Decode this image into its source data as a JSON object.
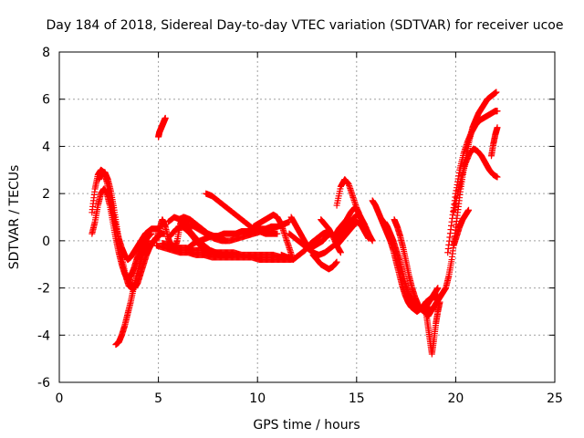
{
  "chart_data": {
    "type": "scatter",
    "title": "Day 184 of 2018, Sidereal Day-to-day VTEC variation (SDTVAR) for receiver ucoe",
    "xlabel": "GPS time / hours",
    "ylabel": "SDTVAR / TECUs",
    "xlim": [
      0,
      25
    ],
    "ylim": [
      -6,
      8
    ],
    "xticks": [
      0,
      5,
      10,
      15,
      20,
      25
    ],
    "yticks": [
      -6,
      -4,
      -2,
      0,
      2,
      4,
      6,
      8
    ],
    "grid": true,
    "marker": "plus",
    "color": "#ff0000",
    "series": [
      {
        "x": [
          1.65,
          1.8,
          1.95,
          2.1,
          2.25,
          2.4,
          2.55,
          2.7,
          2.85,
          3.0,
          3.15,
          3.3,
          3.45,
          3.6,
          3.75,
          3.9,
          4.05,
          4.2,
          4.35,
          4.5,
          4.65,
          4.8,
          4.95,
          5.1
        ],
        "y": [
          1.2,
          2.2,
          2.8,
          3.0,
          2.9,
          2.5,
          1.9,
          1.2,
          0.6,
          0.1,
          -0.3,
          -0.6,
          -0.8,
          -0.7,
          -0.5,
          -0.3,
          -0.1,
          0.1,
          0.3,
          0.4,
          0.5,
          0.5,
          0.5,
          0.5
        ]
      },
      {
        "x": [
          1.65,
          1.8,
          1.95,
          2.1,
          2.25,
          2.4,
          2.55,
          2.7,
          2.85,
          3.0,
          3.15,
          3.3,
          3.45,
          3.6,
          3.75,
          3.9,
          4.05,
          4.2,
          4.35,
          4.5,
          4.65
        ],
        "y": [
          0.3,
          0.8,
          1.5,
          2.0,
          2.2,
          2.0,
          1.5,
          0.8,
          0.1,
          -0.5,
          -1.0,
          -1.4,
          -1.6,
          -1.5,
          -1.2,
          -0.8,
          -0.5,
          -0.2,
          0.0,
          0.2,
          0.3
        ]
      },
      {
        "x": [
          2.0,
          2.15,
          2.3,
          2.45,
          2.6,
          2.75,
          2.9,
          3.05,
          3.2,
          3.35,
          3.5,
          3.65
        ],
        "y": [
          2.6,
          2.9,
          2.9,
          2.6,
          2.1,
          1.4,
          0.6,
          -0.2,
          -0.9,
          -1.5,
          -1.9,
          -2.0
        ]
      },
      {
        "x": [
          2.85,
          3.0,
          3.15,
          3.3,
          3.45,
          3.6,
          3.75,
          3.9,
          4.05,
          4.2,
          4.35,
          4.5
        ],
        "y": [
          -4.4,
          -4.3,
          -4.0,
          -3.6,
          -3.1,
          -2.6,
          -2.0,
          -1.5,
          -1.0,
          -0.6,
          -0.3,
          0.0
        ]
      },
      {
        "x": [
          3.5,
          3.65,
          3.8,
          3.95,
          4.1,
          4.25,
          4.4,
          4.55,
          4.7,
          4.85,
          5.0,
          5.15,
          5.3
        ],
        "y": [
          -1.5,
          -1.9,
          -2.0,
          -1.8,
          -1.4,
          -1.0,
          -0.6,
          -0.3,
          -0.1,
          0.1,
          0.2,
          0.3,
          0.3
        ]
      },
      {
        "x": [
          5.0,
          5.05,
          5.1,
          5.15,
          5.2,
          5.25,
          5.3,
          5.35
        ],
        "y": [
          4.4,
          4.6,
          4.7,
          4.8,
          4.9,
          5.0,
          5.1,
          5.2
        ]
      },
      {
        "x": [
          4.9,
          5.05,
          5.2,
          5.35,
          5.5,
          5.65,
          5.8,
          5.95,
          6.1,
          6.25,
          6.4,
          6.55
        ],
        "y": [
          0.0,
          0.5,
          0.9,
          0.6,
          0.1,
          -0.2,
          -0.4,
          0.0,
          0.7,
          1.0,
          0.8,
          0.5
        ]
      },
      {
        "x": [
          4.9,
          5.3,
          5.7,
          6.1,
          6.5,
          6.9,
          7.3,
          7.7,
          8.1,
          8.5,
          8.9,
          9.3,
          9.7,
          10.1,
          10.5,
          10.9,
          11.3,
          11.7
        ],
        "y": [
          -0.2,
          -0.3,
          -0.4,
          -0.5,
          -0.5,
          -0.6,
          -0.6,
          -0.7,
          -0.7,
          -0.7,
          -0.7,
          -0.7,
          -0.7,
          -0.8,
          -0.8,
          -0.8,
          -0.8,
          -0.8
        ]
      },
      {
        "x": [
          5.2,
          5.6,
          6.0,
          6.4,
          6.8,
          7.2,
          7.6,
          8.0,
          8.4,
          8.8,
          9.2,
          9.6,
          10.0,
          10.4,
          10.8,
          11.2,
          11.6
        ],
        "y": [
          -0.1,
          -0.2,
          -0.3,
          -0.3,
          -0.4,
          -0.4,
          -0.5,
          -0.5,
          -0.5,
          -0.5,
          -0.6,
          -0.6,
          -0.6,
          -0.6,
          -0.6,
          -0.7,
          -0.7
        ]
      },
      {
        "x": [
          5.5,
          5.8,
          6.1,
          6.4,
          6.7,
          7.0,
          7.3,
          7.6,
          7.9,
          8.2,
          8.5,
          8.8
        ],
        "y": [
          0.8,
          1.0,
          0.9,
          0.6,
          0.3,
          0.0,
          -0.2,
          -0.4,
          -0.5,
          -0.6,
          -0.6,
          -0.6
        ]
      },
      {
        "x": [
          5.6,
          5.9,
          6.2,
          6.5,
          6.8,
          7.1,
          7.4,
          7.7,
          8.0,
          8.3
        ],
        "y": [
          0.2,
          0.5,
          0.6,
          0.4,
          0.1,
          -0.2,
          -0.4,
          -0.5,
          -0.6,
          -0.6
        ]
      },
      {
        "x": [
          6.5,
          6.8,
          7.1,
          7.4,
          7.7,
          8.0,
          8.3,
          8.6,
          8.9,
          9.2,
          9.5,
          9.8,
          10.1,
          10.4,
          10.7,
          11.0,
          11.3,
          11.6
        ],
        "y": [
          -0.3,
          -0.1,
          0.0,
          0.1,
          0.2,
          0.2,
          0.3,
          0.3,
          0.3,
          0.4,
          0.4,
          0.5,
          0.5,
          0.5,
          0.6,
          0.6,
          0.7,
          0.8
        ]
      },
      {
        "x": [
          6.6,
          7.0,
          7.4,
          7.8,
          8.2,
          8.6,
          9.0,
          9.4,
          9.8,
          10.2,
          10.6,
          11.0,
          11.4
        ],
        "y": [
          0.7,
          0.5,
          0.3,
          0.1,
          0.0,
          0.0,
          0.1,
          0.2,
          0.3,
          0.4,
          0.5,
          0.6,
          0.7
        ]
      },
      {
        "x": [
          6.0,
          6.3,
          6.6,
          6.9,
          7.2,
          7.5,
          7.8,
          8.1,
          8.4
        ],
        "y": [
          0.9,
          1.0,
          0.9,
          0.7,
          0.5,
          0.3,
          0.2,
          0.1,
          0.0
        ]
      },
      {
        "x": [
          7.4,
          7.7,
          8.0,
          8.3,
          8.6,
          8.9,
          9.2,
          9.5,
          9.8,
          10.1,
          10.4,
          10.7,
          11.0
        ],
        "y": [
          2.0,
          1.9,
          1.7,
          1.5,
          1.3,
          1.1,
          0.9,
          0.7,
          0.5,
          0.4,
          0.3,
          0.3,
          0.3
        ]
      },
      {
        "x": [
          9.8,
          10.0,
          10.2,
          10.4,
          10.6,
          10.8,
          11.0,
          11.2,
          11.4,
          11.6,
          11.8
        ],
        "y": [
          0.6,
          0.7,
          0.8,
          0.9,
          1.0,
          1.1,
          1.0,
          0.7,
          0.2,
          -0.3,
          -0.8
        ]
      },
      {
        "x": [
          11.2,
          11.5,
          11.8,
          12.1,
          12.4,
          12.7,
          13.0,
          13.3,
          13.6
        ],
        "y": [
          -0.6,
          -0.7,
          -0.8,
          -0.6,
          -0.4,
          -0.1,
          0.1,
          0.3,
          0.4
        ]
      },
      {
        "x": [
          11.7,
          11.9,
          12.1,
          12.3,
          12.5,
          12.7,
          12.9,
          13.1,
          13.3,
          13.5,
          13.7
        ],
        "y": [
          1.0,
          0.7,
          0.4,
          0.1,
          -0.2,
          -0.3,
          -0.2,
          -0.1,
          0.0,
          0.2,
          0.3
        ]
      },
      {
        "x": [
          11.6,
          11.9,
          12.2,
          12.5,
          12.8,
          13.1,
          13.4,
          13.7,
          14.0
        ],
        "y": [
          0.3,
          0.1,
          -0.1,
          -0.3,
          -0.5,
          -0.6,
          -0.5,
          -0.3,
          -0.1
        ]
      },
      {
        "x": [
          12.8,
          13.0,
          13.2,
          13.4,
          13.6,
          13.8,
          14.0
        ],
        "y": [
          -0.6,
          -0.8,
          -1.0,
          -1.1,
          -1.2,
          -1.1,
          -0.9
        ]
      },
      {
        "x": [
          13.2,
          13.4,
          13.6,
          13.8,
          14.0,
          14.2
        ],
        "y": [
          0.9,
          0.7,
          0.5,
          0.2,
          -0.2,
          -0.5
        ]
      },
      {
        "x": [
          14.0,
          14.2,
          14.4,
          14.6,
          14.8,
          15.0,
          15.2,
          15.4,
          15.6
        ],
        "y": [
          1.5,
          2.3,
          2.6,
          2.4,
          1.9,
          1.4,
          1.0,
          0.6,
          0.3
        ]
      },
      {
        "x": [
          13.9,
          14.1,
          14.3,
          14.5,
          14.7,
          14.9,
          15.1,
          15.3,
          15.5,
          15.7
        ],
        "y": [
          0.2,
          0.5,
          0.7,
          0.9,
          1.2,
          1.4,
          1.2,
          0.8,
          0.4,
          0.1
        ]
      },
      {
        "x": [
          14.0,
          14.2,
          14.4,
          14.6,
          14.8,
          15.0,
          15.2,
          15.4,
          15.6,
          15.8
        ],
        "y": [
          0.0,
          0.3,
          0.5,
          0.7,
          0.9,
          1.1,
          1.0,
          0.7,
          0.3,
          0.0
        ]
      },
      {
        "x": [
          14.0,
          14.2,
          14.4,
          14.6,
          14.8,
          15.0,
          15.2,
          15.4,
          15.6
        ],
        "y": [
          -0.2,
          0.0,
          0.2,
          0.4,
          0.6,
          0.8,
          0.7,
          0.4,
          0.1
        ]
      },
      {
        "x": [
          15.8,
          15.95,
          16.1,
          16.25,
          16.4,
          16.55,
          16.7,
          16.85,
          17.0,
          17.15,
          17.3,
          17.45,
          17.6,
          17.75,
          17.9,
          18.05,
          18.2,
          18.35,
          18.5,
          18.65,
          18.8,
          18.95,
          19.1
        ],
        "y": [
          1.7,
          1.5,
          1.2,
          0.9,
          0.6,
          0.3,
          0.0,
          -0.4,
          -0.9,
          -1.4,
          -1.9,
          -2.3,
          -2.6,
          -2.8,
          -2.9,
          -3.0,
          -2.9,
          -2.8,
          -2.6,
          -2.5,
          -2.4,
          -2.4,
          -2.3
        ]
      },
      {
        "x": [
          16.4,
          16.55,
          16.7,
          16.85,
          17.0,
          17.15,
          17.3,
          17.45,
          17.6,
          17.75,
          17.9,
          18.05,
          18.2,
          18.35,
          18.5,
          18.65,
          18.8,
          18.95,
          19.1
        ],
        "y": [
          0.8,
          0.6,
          0.3,
          0.0,
          -0.4,
          -0.8,
          -1.3,
          -1.8,
          -2.2,
          -2.5,
          -2.7,
          -2.8,
          -2.9,
          -2.9,
          -2.8,
          -2.6,
          -2.4,
          -2.2,
          -2.0
        ]
      },
      {
        "x": [
          16.9,
          17.05,
          17.2,
          17.35,
          17.5,
          17.65,
          17.8,
          17.95,
          18.1,
          18.25,
          18.4,
          18.55,
          18.7
        ],
        "y": [
          0.9,
          0.6,
          0.2,
          -0.3,
          -0.9,
          -1.5,
          -2.0,
          -2.4,
          -2.7,
          -2.9,
          -3.0,
          -3.0,
          -2.9
        ]
      },
      {
        "x": [
          18.5,
          18.6,
          18.7,
          18.8,
          18.9,
          19.0,
          19.1,
          19.2
        ],
        "y": [
          -3.0,
          -3.6,
          -4.2,
          -4.8,
          -4.2,
          -3.5,
          -3.0,
          -2.6
        ]
      },
      {
        "x": [
          18.6,
          18.75,
          18.9,
          19.05,
          19.2,
          19.35,
          19.5,
          19.65,
          19.8,
          19.95,
          20.1,
          20.25,
          20.4,
          20.55,
          20.7,
          20.85,
          21.0,
          21.15,
          21.3,
          21.45,
          21.6,
          21.75,
          21.9,
          22.05
        ],
        "y": [
          -3.2,
          -3.0,
          -2.8,
          -2.6,
          -2.4,
          -2.2,
          -2.0,
          -1.5,
          -0.8,
          0.2,
          1.2,
          2.2,
          3.0,
          3.7,
          4.3,
          4.8,
          5.1,
          5.4,
          5.6,
          5.8,
          6.0,
          6.1,
          6.2,
          6.3
        ]
      },
      {
        "x": [
          19.6,
          19.8,
          20.0,
          20.2,
          20.4,
          20.6,
          20.8,
          21.0,
          21.2,
          21.4,
          21.6,
          21.8,
          22.0,
          22.1
        ],
        "y": [
          -0.5,
          0.8,
          2.0,
          3.0,
          3.7,
          4.2,
          4.6,
          4.9,
          5.1,
          5.2,
          5.3,
          5.4,
          5.5,
          5.5
        ]
      },
      {
        "x": [
          19.9,
          20.1,
          20.3,
          20.5,
          20.7,
          20.9,
          21.1,
          21.3,
          21.5,
          21.7,
          21.9,
          22.1
        ],
        "y": [
          1.2,
          2.0,
          2.7,
          3.3,
          3.7,
          3.9,
          3.8,
          3.6,
          3.3,
          3.0,
          2.8,
          2.7
        ]
      },
      {
        "x": [
          21.8,
          21.9,
          22.0,
          22.1
        ],
        "y": [
          3.6,
          4.1,
          4.5,
          4.8
        ]
      },
      {
        "x": [
          19.9,
          20.05,
          20.2,
          20.35,
          20.5,
          20.65
        ],
        "y": [
          -0.2,
          0.2,
          0.6,
          0.9,
          1.1,
          1.3
        ]
      }
    ]
  }
}
